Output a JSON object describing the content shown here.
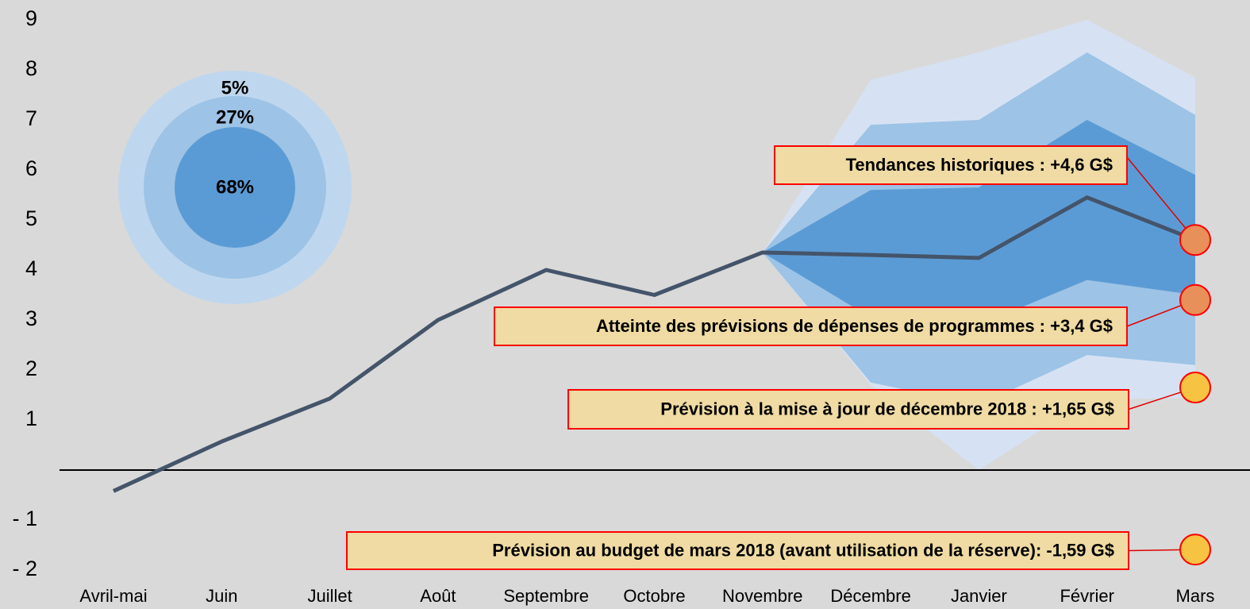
{
  "chart_data": {
    "type": "line",
    "categories": [
      "Avril-mai",
      "Juin",
      "Juillet",
      "Août",
      "Septembre",
      "Octobre",
      "Novembre",
      "Décembre",
      "Janvier",
      "Février",
      "Mars"
    ],
    "series": [
      {
        "color": "#44546a",
        "values": [
          -0.42,
          0.57,
          1.43,
          3.0,
          4.0,
          3.5,
          4.35,
          4.3,
          4.24,
          5.45,
          4.6
        ]
      }
    ],
    "bands": [
      {
        "label": "5%",
        "color": "#d6e2f3",
        "legend_color": "#bfd7ee",
        "upper": [
          null,
          null,
          null,
          null,
          null,
          null,
          4.35,
          7.8,
          8.35,
          9.0,
          7.85
        ],
        "lower": [
          null,
          null,
          null,
          null,
          null,
          null,
          4.35,
          1.7,
          0.0,
          1.4,
          1.45
        ]
      },
      {
        "label": "27%",
        "color": "#9dc3e6",
        "legend_color": "#9dc3e6",
        "upper": [
          null,
          null,
          null,
          null,
          null,
          null,
          4.35,
          6.9,
          7.0,
          8.35,
          7.1
        ],
        "lower": [
          null,
          null,
          null,
          null,
          null,
          null,
          4.35,
          1.75,
          1.3,
          2.3,
          2.1
        ]
      },
      {
        "label": "68%",
        "color": "#5b9bd5",
        "legend_color": "#5b9bd5",
        "upper": [
          null,
          null,
          null,
          null,
          null,
          null,
          4.35,
          5.6,
          5.65,
          7.0,
          5.9
        ],
        "lower": [
          null,
          null,
          null,
          null,
          null,
          null,
          4.35,
          3.05,
          2.9,
          3.8,
          3.5
        ]
      }
    ],
    "annotations": [
      {
        "text": "Tendances historiques : +4,6 G$",
        "value": 4.6,
        "color": "#e8905a"
      },
      {
        "text": "Atteinte des prévisions de dépenses de programmes : +3,4 G$",
        "value": 3.4,
        "color": "#e8905a"
      },
      {
        "text": "Prévision à la mise à jour de décembre 2018 : +1,65 G$",
        "value": 1.65,
        "color": "#f6c342"
      },
      {
        "text": "Prévision au budget de mars 2018 (avant utilisation de la réserve): -1,59 G$",
        "value": -1.59,
        "color": "#f6c342"
      }
    ],
    "ylim": [
      -2,
      9
    ],
    "yticks": [
      {
        "value": -2,
        "label": "- 2"
      },
      {
        "value": -1,
        "label": "- 1"
      },
      1,
      2,
      3,
      4,
      5,
      6,
      7,
      8,
      9
    ]
  }
}
